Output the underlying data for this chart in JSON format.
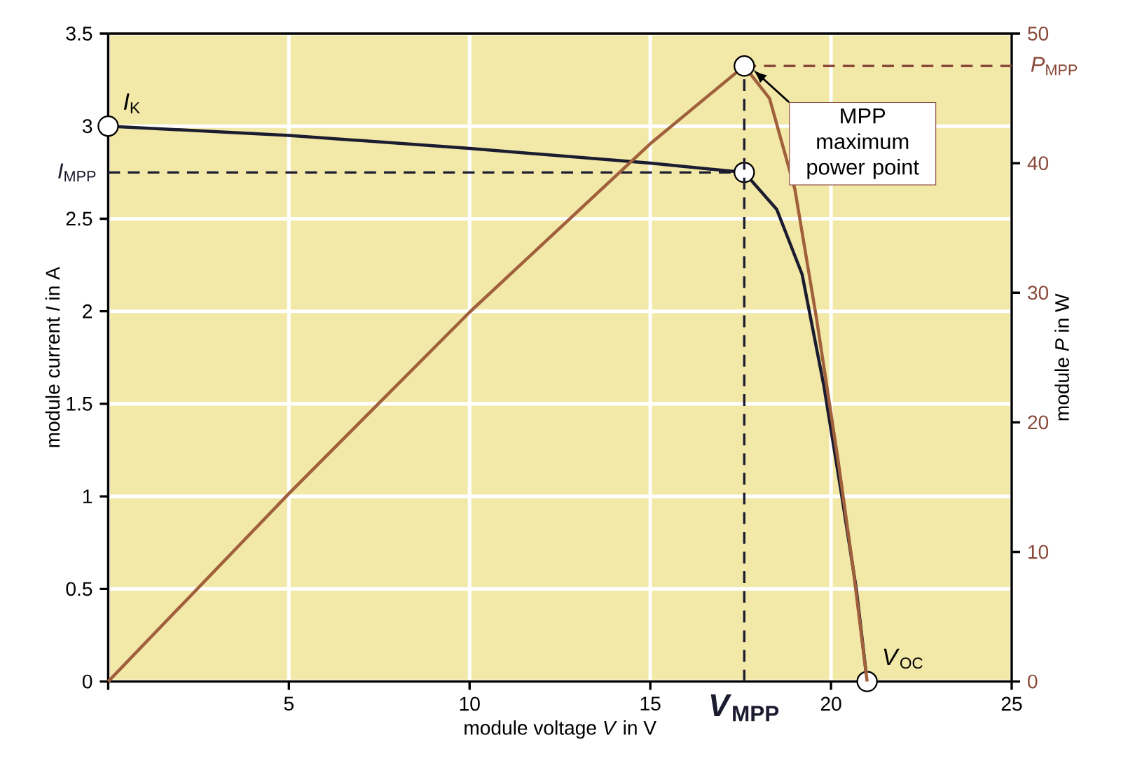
{
  "chart_data": {
    "type": "line",
    "xlabel": "module voltage *V* in V",
    "ylabel": "module current *I* in A",
    "y2label": "module *P* in W",
    "xlim": [
      0,
      25
    ],
    "xticks": [
      {
        "value": 0,
        "label": null
      },
      5,
      10,
      15,
      20,
      25
    ],
    "ylim": [
      0,
      3.5
    ],
    "yticks": [
      0,
      0.5,
      1,
      1.5,
      2,
      2.5,
      3,
      3.5
    ],
    "y2lim": [
      0,
      50
    ],
    "y2ticks": [
      0,
      10,
      20,
      30,
      40,
      50
    ],
    "grid": true,
    "marker": "none",
    "line_style": "solid",
    "series": [
      {
        "color": "#1c1c30",
        "x": [
          0,
          5,
          10,
          15,
          17.6,
          18.5,
          19.2,
          19.8,
          20.3,
          20.7,
          21
        ],
        "values": [
          3.0,
          2.95,
          2.88,
          2.8,
          2.75,
          2.55,
          2.2,
          1.6,
          1.0,
          0.5,
          0
        ]
      },
      {
        "color": "#a0603c",
        "axis": "y2",
        "x": [
          0,
          5,
          10,
          15,
          17.6,
          18.3,
          19,
          19.6,
          20.2,
          20.6,
          21
        ],
        "values": [
          0,
          14.5,
          28.5,
          41.5,
          47.5,
          45,
          38,
          28,
          17,
          9,
          0
        ]
      }
    ],
    "ref_lines": [
      {
        "axis": "y",
        "value": 2.75,
        "label": "*I*$_{MPP}$",
        "line_style": "dashed",
        "color": "#1c1c30"
      },
      {
        "axis": "x",
        "value": 17.6,
        "label": "*V*$_{MPP}$",
        "line_style": "dashed",
        "color": "#1c1c30"
      },
      {
        "axis": "y2",
        "value": 47.5,
        "label": "*P*$_{MPP}$",
        "line_style": "dashed",
        "color": "#8a4a3a"
      }
    ],
    "annotations": [
      {
        "text": "*I*$_{K}$",
        "x": 0,
        "y": 3.0
      },
      {
        "text": "*V*$_{OC}$",
        "x": 21,
        "y": 0
      },
      "MPP maximum power point"
    ]
  }
}
